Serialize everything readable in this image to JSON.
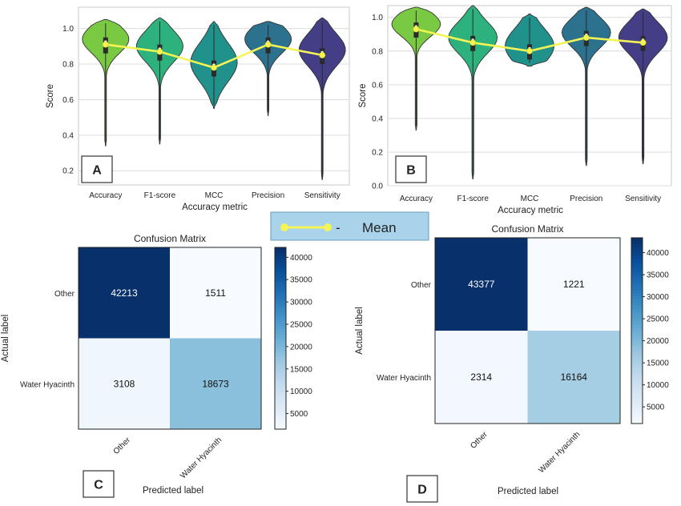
{
  "chart_data": [
    {
      "panel": "A",
      "type": "violin",
      "xlabel": "Accuracy metric",
      "ylabel": "Score",
      "categories": [
        "Accuracy",
        "F1-score",
        "MCC",
        "Precision",
        "Sensitivity"
      ],
      "ylim": [
        0.12,
        1.12
      ],
      "yticks": [
        "0.2",
        "0.4",
        "0.6",
        "0.8",
        "1.0"
      ],
      "grid": true,
      "colors": [
        "#7ac943",
        "#2db27d",
        "#21918c",
        "#2c728e",
        "#433e85"
      ],
      "distribution_range": [
        [
          0.34,
          1.05
        ],
        [
          0.35,
          1.06
        ],
        [
          0.55,
          1.04
        ],
        [
          0.51,
          1.04
        ],
        [
          0.15,
          1.06
        ]
      ],
      "series": [
        {
          "name": "Mean",
          "values": [
            0.91,
            0.87,
            0.78,
            0.91,
            0.85
          ],
          "color": "#f4f455"
        }
      ]
    },
    {
      "panel": "B",
      "type": "violin",
      "xlabel": "Accuracy metric",
      "ylabel": "Score",
      "categories": [
        "Accuracy",
        "F1-score",
        "MCC",
        "Precision",
        "Sensitivity"
      ],
      "ylim": [
        0.0,
        1.07
      ],
      "yticks": [
        "0.0",
        "0.2",
        "0.4",
        "0.6",
        "0.8",
        "1.0"
      ],
      "grid": true,
      "colors": [
        "#7ac943",
        "#2db27d",
        "#21918c",
        "#2c728e",
        "#433e85"
      ],
      "distribution_range": [
        [
          0.33,
          1.06
        ],
        [
          0.04,
          1.07
        ],
        [
          0.71,
          1.02
        ],
        [
          0.12,
          1.06
        ],
        [
          0.13,
          1.05
        ]
      ],
      "series": [
        {
          "name": "Mean",
          "values": [
            0.93,
            0.85,
            0.8,
            0.88,
            0.85
          ],
          "color": "#f4f455"
        }
      ]
    },
    {
      "panel": "C",
      "type": "heatmap",
      "title": "Confusion Matrix",
      "xlabel": "Predicted label",
      "ylabel": "Actual label",
      "row_labels": [
        "Other",
        "Water Hyacinth"
      ],
      "col_labels": [
        "Other",
        "Water Hyacinth"
      ],
      "values": [
        [
          42213,
          1511
        ],
        [
          3108,
          18673
        ]
      ],
      "colorbar_ticks": [
        "5000",
        "10000",
        "15000",
        "20000",
        "25000",
        "30000",
        "35000",
        "40000"
      ],
      "colorbar_range": [
        1511,
        42213
      ]
    },
    {
      "panel": "D",
      "type": "heatmap",
      "title": "Confusion Matrix",
      "xlabel": "Predicted label",
      "ylabel": "Actual label",
      "row_labels": [
        "Other",
        "Water Hyacinth"
      ],
      "col_labels": [
        "Other",
        "Water Hyacinth"
      ],
      "values": [
        [
          43377,
          1221
        ],
        [
          2314,
          16164
        ]
      ],
      "colorbar_ticks": [
        "5000",
        "10000",
        "15000",
        "20000",
        "25000",
        "30000",
        "35000",
        "40000"
      ],
      "colorbar_range": [
        1221,
        43377
      ]
    }
  ],
  "legend": {
    "dash": "-",
    "label": "Mean"
  },
  "panel_letters": [
    "A",
    "B",
    "C",
    "D"
  ],
  "colors": {
    "mean_line": "#f4f455",
    "legend_bg": "#a9d3ea",
    "legend_border": "#6a9bb8"
  }
}
